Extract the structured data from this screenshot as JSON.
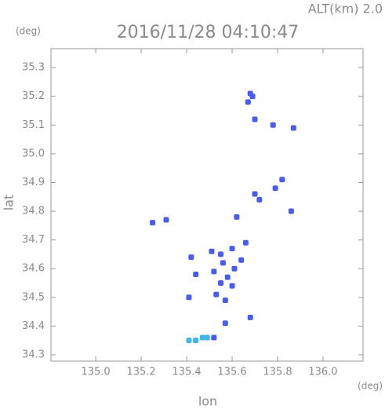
{
  "chart_data": {
    "type": "scatter",
    "altitude_label": "ALT(km) 2.0",
    "title": "2016/11/28 04:10:47",
    "y_unit": "(deg)",
    "x_unit": "(deg)",
    "ylabel": "lat",
    "xlabel": "lon",
    "xlim": [
      134.803,
      136.176
    ],
    "ylim": [
      34.278,
      35.366
    ],
    "xticks": [
      {
        "value": 135,
        "label": "135.0"
      },
      135.2,
      135.4,
      135.6,
      135.8,
      {
        "value": 136,
        "label": "136.0"
      }
    ],
    "yticks": [
      34.3,
      34.4,
      34.5,
      34.6,
      34.7,
      34.8,
      34.9,
      {
        "value": 35,
        "label": "35.0"
      },
      35.1,
      35.2,
      35.3
    ],
    "series": [
      {
        "color": "#4a5cf0",
        "x": [
          135.68,
          135.67,
          135.69,
          135.7,
          135.78,
          135.87,
          135.82,
          135.79,
          135.7,
          135.72,
          135.86,
          135.62,
          135.31,
          135.25,
          135.66,
          135.51,
          135.55,
          135.6,
          135.42,
          135.64,
          135.56,
          135.61,
          135.58,
          135.52,
          135.55,
          135.6,
          135.53,
          135.57,
          135.44,
          135.41,
          135.57,
          135.68,
          135.52
        ],
        "y": [
          35.21,
          35.18,
          35.2,
          35.12,
          35.1,
          35.09,
          34.91,
          34.88,
          34.86,
          34.84,
          34.8,
          34.78,
          34.77,
          34.76,
          34.69,
          34.66,
          34.65,
          34.67,
          34.64,
          34.63,
          34.62,
          34.6,
          34.57,
          34.59,
          34.55,
          34.54,
          34.51,
          34.49,
          34.58,
          34.5,
          34.41,
          34.43,
          34.36
        ]
      },
      {
        "color": "#3fb6ee",
        "x": [
          135.41,
          135.44,
          135.47,
          135.49
        ],
        "y": [
          34.35,
          34.35,
          34.36,
          34.36
        ]
      }
    ]
  }
}
